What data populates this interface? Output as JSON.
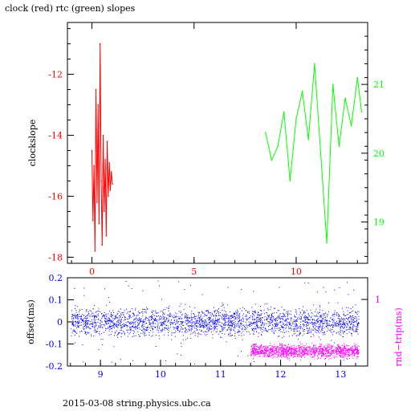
{
  "title": "clock (red) rtc (green) slopes",
  "footer": "2015-03-08  string.physics.ubc.ca",
  "colors": {
    "clock": "#ff0000",
    "rtc": "#00ff00",
    "offset": "#0000ff",
    "rnd_trip": "#ff00ff",
    "frame": "#000000"
  },
  "chart_data": [
    {
      "type": "line",
      "title": "clock (red) rtc (green) slopes",
      "ylabel": "clockslope",
      "ylabel_right": "",
      "xlim": [
        -1.2,
        13.5
      ],
      "ylim": [
        -18.2,
        -10.3
      ],
      "y2lim": [
        18.4,
        21.9
      ],
      "x_ticks": [
        "0",
        "5",
        "10"
      ],
      "y_ticks": [
        "-12",
        "-14",
        "-16",
        "-18"
      ],
      "y2_ticks": [
        "21",
        "20",
        "19"
      ],
      "grid": false,
      "series": [
        {
          "name": "clock",
          "axis": "left",
          "x": [
            0.0,
            0.05,
            0.1,
            0.15,
            0.2,
            0.25,
            0.3,
            0.35,
            0.4,
            0.45,
            0.5,
            0.55,
            0.6,
            0.65,
            0.7,
            0.75,
            0.8,
            0.85,
            0.9,
            0.95,
            1.0
          ],
          "values": [
            -14.5,
            -16.8,
            -15.0,
            -17.8,
            -12.5,
            -16.2,
            -13.0,
            -16.9,
            -11.0,
            -15.5,
            -17.6,
            -14.0,
            -16.5,
            -14.8,
            -17.3,
            -14.2,
            -16.0,
            -14.9,
            -15.8,
            -15.2,
            -15.6
          ]
        },
        {
          "name": "rtc",
          "axis": "right",
          "x": [
            8.5,
            8.8,
            9.1,
            9.4,
            9.7,
            10.0,
            10.3,
            10.6,
            10.9,
            11.2,
            11.5,
            11.8,
            12.1,
            12.4,
            12.7,
            13.0,
            13.2
          ],
          "values": [
            20.3,
            19.9,
            20.1,
            20.6,
            19.6,
            20.5,
            20.9,
            20.2,
            21.3,
            20.0,
            18.7,
            21.0,
            20.1,
            20.8,
            20.4,
            21.1,
            20.6
          ]
        }
      ]
    },
    {
      "type": "scatter",
      "ylabel": "offset(ms)",
      "ylabel_right": "rnd−trip(ms)",
      "xlim": [
        8.45,
        13.45
      ],
      "ylim": [
        -0.2,
        0.2
      ],
      "x_ticks": [
        "9",
        "10",
        "11",
        "12",
        "13"
      ],
      "y_ticks": [
        "0.2",
        "0.1",
        "0",
        "-0.1",
        "-0.2"
      ],
      "y2_ticks": [
        "1"
      ],
      "grid": false,
      "series": [
        {
          "name": "offset",
          "x_range": [
            8.5,
            13.3
          ],
          "center": 0.0,
          "spread": 0.03
        },
        {
          "name": "rnd-trip",
          "x_range": [
            11.5,
            13.3
          ],
          "center": -0.13,
          "spread": 0.015
        }
      ]
    }
  ]
}
